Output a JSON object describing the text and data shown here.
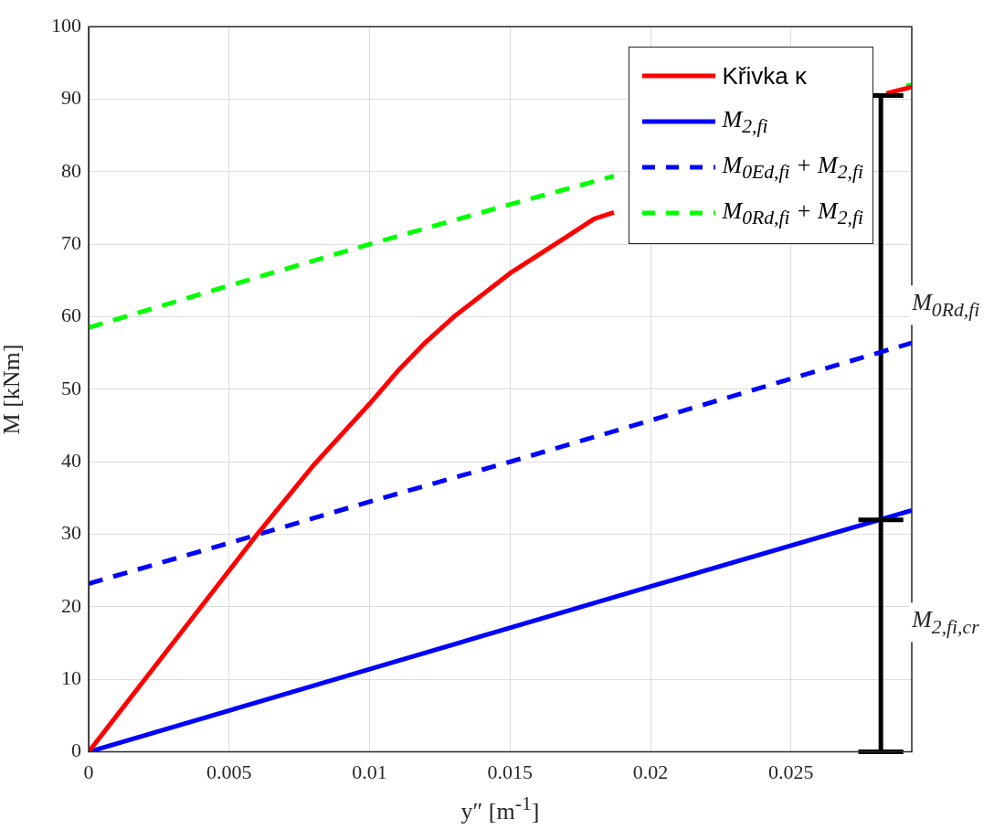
{
  "chart_data": {
    "type": "line",
    "xlabel": "y″ [m$^{-1}$]",
    "ylabel": "M [kNm]",
    "xlim": [
      0,
      0.0293
    ],
    "xticks": [
      0,
      0.005,
      0.01,
      0.015,
      0.02,
      0.025
    ],
    "ylim": [
      0,
      100
    ],
    "yticks": [
      0,
      10,
      20,
      30,
      40,
      50,
      60,
      70,
      80,
      90,
      100
    ],
    "grid": true,
    "legend": "top right",
    "marker": "none",
    "series": [
      {
        "name": "Křivka κ",
        "color": "#ff0000",
        "line_style": "solid",
        "x": [
          0,
          0.002,
          0.004,
          0.005,
          0.006,
          0.008,
          0.01,
          0.011,
          0.012,
          0.013,
          0.015,
          0.017,
          0.018,
          0.0187,
          0.023,
          0.0284,
          0.0293
        ],
        "values": [
          0,
          10,
          20,
          25,
          30,
          39.5,
          48,
          52.5,
          56.5,
          60,
          66,
          71,
          73.5,
          74.4,
          null,
          90.8,
          91.7
        ]
      },
      {
        "name": "M$_{2,fi}$",
        "color": "#0000ff",
        "line_style": "solid",
        "x": [
          0,
          0.01,
          0.02,
          0.0293
        ],
        "values": [
          0,
          11.4,
          22.8,
          33.3
        ]
      },
      {
        "name": "M$_{0Ed,fi}$ + M$_{2,fi}$",
        "color": "#0000ff",
        "line_style": "dashed",
        "x": [
          0,
          0.005,
          0.01,
          0.015,
          0.02,
          0.0293
        ],
        "values": [
          23.2,
          28.8,
          34.5,
          40,
          45.7,
          56.4
        ]
      },
      {
        "name": "M$_{0Rd,fi}$ + M$_{2,fi}$",
        "color": "#00ff00",
        "line_style": "dashed",
        "x": [
          0,
          0.005,
          0.01,
          0.015,
          0.0187,
          0.023,
          0.0291,
          0.0293
        ],
        "values": [
          58.5,
          64.3,
          70,
          75.5,
          79.4,
          null,
          91.8,
          92
        ]
      },
      {
        "color": "#000000",
        "line_style": "solid",
        "x": [
          0.0282,
          0.0282,
          0.0282
        ],
        "values": [
          0,
          32,
          90.5
        ],
        "xerrors": [
          0.0008,
          0.0008,
          0.0008
        ]
      }
    ],
    "annotations": [
      {
        "text": "M$_{0Rd,fi}$",
        "x": 0.0282,
        "y": 61.6
      },
      {
        "text": "M$_{2,fi,cr}$",
        "x": 0.0282,
        "y": 17.9
      }
    ]
  }
}
